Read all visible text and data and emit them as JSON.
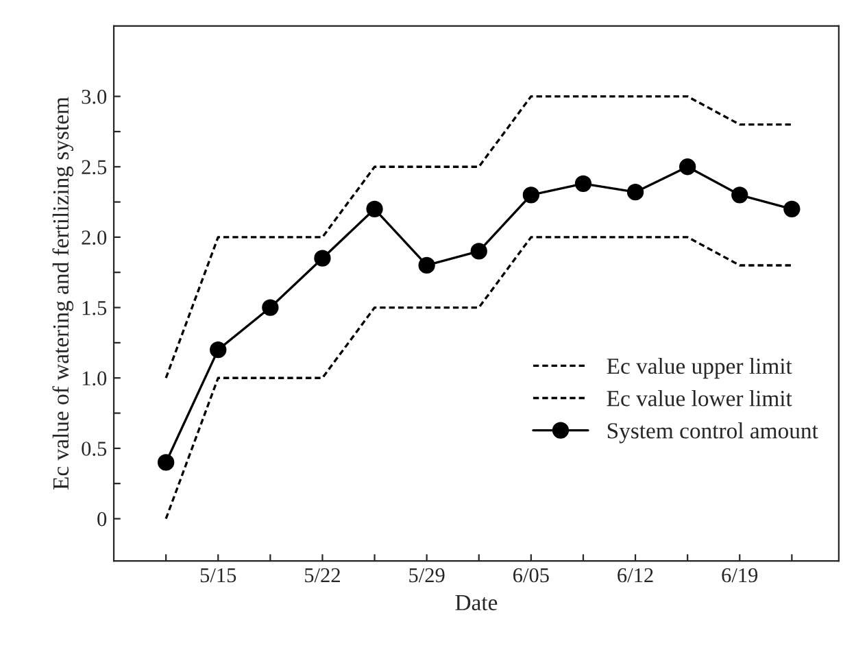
{
  "chart_data": {
    "type": "line",
    "xlabel": "Date",
    "ylabel": "Ec value of watering and fertilizing system",
    "categories": [
      null,
      "5/15",
      null,
      "5/22",
      null,
      "5/29",
      null,
      "6/05",
      null,
      "6/12",
      null,
      "6/19",
      null
    ],
    "series": [
      {
        "name": "Ec value upper limit",
        "color": "#000000",
        "line_style": "dashed",
        "marker": "none",
        "values": [
          1.0,
          2.0,
          2.0,
          2.0,
          2.5,
          2.5,
          2.5,
          3.0,
          3.0,
          3.0,
          3.0,
          2.8,
          2.8
        ]
      },
      {
        "name": "Ec value lower limit",
        "color": "#000000",
        "line_style": "dashed",
        "marker": "none",
        "values": [
          0.0,
          1.0,
          1.0,
          1.0,
          1.5,
          1.5,
          1.5,
          2.0,
          2.0,
          2.0,
          2.0,
          1.8,
          1.8
        ]
      },
      {
        "name": "System control amount",
        "color": "#000000",
        "line_style": "solid",
        "marker": "circle",
        "values": [
          0.4,
          1.2,
          1.5,
          1.85,
          2.2,
          1.8,
          1.9,
          2.3,
          2.38,
          2.32,
          2.5,
          2.3,
          2.2
        ]
      }
    ],
    "ylim": [
      -0.3,
      3.5
    ],
    "yticks": [
      0,
      {
        "value": 0.25,
        "label": null
      },
      0.5,
      {
        "value": 0.75,
        "label": null
      },
      {
        "value": 1,
        "label": "1.0"
      },
      {
        "value": 1.25,
        "label": null
      },
      1.5,
      {
        "value": 1.75,
        "label": null
      },
      {
        "value": 2,
        "label": "2.0"
      },
      {
        "value": 2.25,
        "label": null
      },
      2.5,
      {
        "value": 2.75,
        "label": null
      },
      {
        "value": 3,
        "label": "3.0"
      }
    ],
    "grid": false,
    "legend": "right"
  }
}
